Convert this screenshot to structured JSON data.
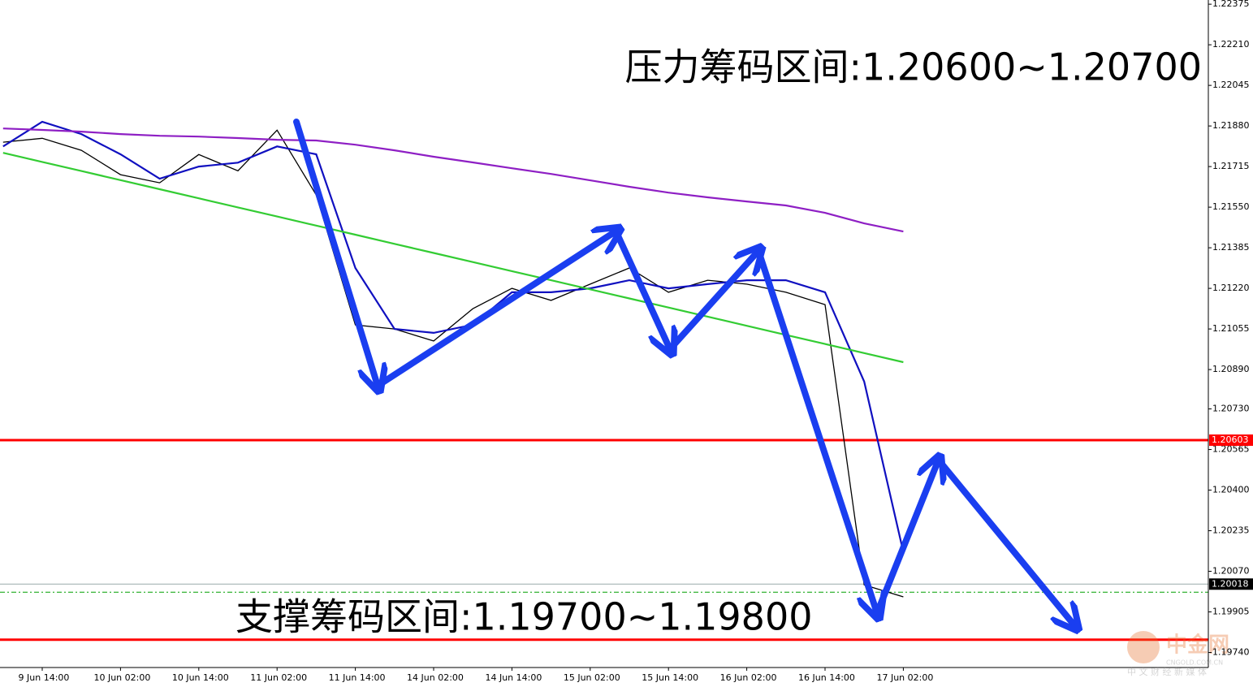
{
  "chart_data": {
    "type": "line",
    "annotations": [
      "压力筹码区间:1.20600~1.20700",
      "支撑筹码区间:1.19700~1.19800"
    ],
    "watermark": {
      "brand": "中金网",
      "site": "CNGOLD.COM.CN",
      "slogan": "中 文 财 经 新 媒 体"
    },
    "categories": [
      null,
      "9 Jun 14:00",
      null,
      "10 Jun 02:00",
      null,
      "10 Jun 14:00",
      null,
      "11 Jun 02:00",
      null,
      "11 Jun 14:00",
      null,
      "14 Jun 02:00",
      null,
      "14 Jun 14:00",
      null,
      "15 Jun 02:00",
      null,
      "15 Jun 14:00",
      null,
      "16 Jun 02:00",
      null,
      "16 Jun 14:00",
      null,
      "17 Jun 02:00",
      null,
      null,
      null,
      null,
      null,
      null,
      null
    ],
    "series": [
      {
        "color": "#000000",
        "values": [
          1.21814,
          1.2183,
          1.21781,
          1.21682,
          1.21649,
          1.21764,
          1.21698,
          1.21863,
          1.216,
          1.21071,
          1.21055,
          1.21006,
          1.21137,
          1.2122,
          1.21171,
          1.21237,
          1.21303,
          1.21204,
          1.21253,
          1.21237,
          1.21204,
          1.21154,
          1.20015,
          1.19966,
          null,
          null,
          null,
          null,
          null,
          null,
          null
        ]
      },
      {
        "color": "#1010c0",
        "values": [
          1.21797,
          1.21897,
          1.21847,
          1.21765,
          1.21666,
          1.21715,
          1.21731,
          1.21797,
          1.21765,
          1.21303,
          1.21055,
          1.21039,
          1.21072,
          1.21204,
          1.21204,
          1.2122,
          1.21253,
          1.2122,
          1.21237,
          1.21253,
          1.21253,
          1.21204,
          1.20841,
          1.20148,
          null,
          null,
          null,
          null,
          null,
          null,
          null
        ]
      },
      {
        "color": "#8e1fc4",
        "values": [
          1.2187,
          1.21864,
          1.21857,
          1.21847,
          1.2184,
          1.21837,
          1.21831,
          1.21824,
          1.21821,
          1.21804,
          1.21781,
          1.21755,
          1.21732,
          1.21708,
          1.21685,
          1.21659,
          1.21633,
          1.21609,
          1.2159,
          1.21573,
          1.21557,
          1.21527,
          1.21484,
          1.21451,
          null,
          null,
          null,
          null,
          null,
          null,
          null
        ]
      },
      {
        "color": "#33cc33",
        "values": [
          1.21771,
          1.21734,
          1.21697,
          1.2166,
          1.21623,
          1.21586,
          1.21549,
          1.21512,
          1.21475,
          1.21438,
          1.21401,
          1.21364,
          1.21327,
          1.2129,
          1.21253,
          1.21216,
          1.21179,
          1.21142,
          1.21105,
          1.21068,
          1.21031,
          1.20994,
          1.20957,
          1.2092,
          null,
          null,
          null,
          null,
          null,
          null,
          null
        ]
      }
    ],
    "ylim": [
      1.19679,
      1.22392
    ],
    "yticks": [
      {
        "value": 1.22375,
        "label": "1.22375"
      },
      {
        "value": 1.2221,
        "label": "1.22210"
      },
      {
        "value": 1.22045,
        "label": "1.22045"
      },
      {
        "value": 1.2188,
        "label": "1.21880"
      },
      {
        "value": 1.21715,
        "label": "1.21715"
      },
      {
        "value": 1.2155,
        "label": "1.21550"
      },
      {
        "value": 1.21385,
        "label": "1.21385"
      },
      {
        "value": 1.2122,
        "label": "1.21220"
      },
      {
        "value": 1.21055,
        "label": "1.21055"
      },
      {
        "value": 1.2089,
        "label": "1.20890"
      },
      {
        "value": 1.2073,
        "label": "1.20730"
      },
      {
        "value": 1.20565,
        "label": "1.20565"
      },
      {
        "value": 1.204,
        "label": "1.20400"
      },
      {
        "value": 1.20235,
        "label": "1.20235"
      },
      {
        "value": 1.2007,
        "label": "1.20070"
      },
      {
        "value": 1.19905,
        "label": "1.19905"
      },
      {
        "value": 1.1974,
        "label": "1.19740"
      }
    ],
    "levels": [
      {
        "value": 1.20603,
        "label": "1.20603",
        "color": "#ff0000"
      },
      {
        "value": 1.19792,
        "color": "#ff0000"
      }
    ],
    "last_price": {
      "value": 1.20018,
      "label": "1.20018",
      "color": "#00a000"
    }
  }
}
